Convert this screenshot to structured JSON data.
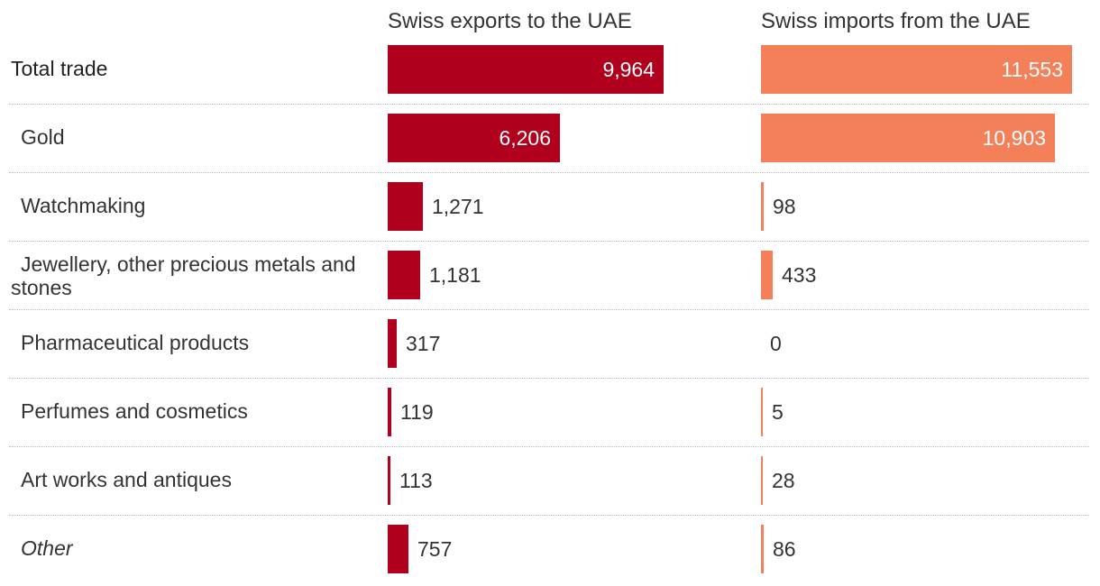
{
  "chart_data": {
    "type": "bar",
    "orientation": "horizontal",
    "layout": "two-panel",
    "series": [
      {
        "name": "Swiss exports to the UAE",
        "color": "#b0001e",
        "values": [
          9964,
          6206,
          1271,
          1181,
          317,
          119,
          113,
          757
        ],
        "labels": [
          "9,964",
          "6,206",
          "1,271",
          "1,181",
          "317",
          "119",
          "113",
          "757"
        ]
      },
      {
        "name": "Swiss imports from the UAE",
        "color": "#f4805a",
        "values": [
          11553,
          10903,
          98,
          433,
          0,
          5,
          28,
          86
        ],
        "labels": [
          "11,553",
          "10,903",
          "98",
          "433",
          "0",
          "5",
          "28",
          "86"
        ]
      }
    ],
    "categories": [
      {
        "label": "Total trade",
        "style": "total"
      },
      {
        "label": "Gold",
        "style": "normal"
      },
      {
        "label": "Watchmaking",
        "style": "normal"
      },
      {
        "label": "Jewellery, other precious metals and stones",
        "style": "normal"
      },
      {
        "label": "Pharmaceutical products",
        "style": "normal"
      },
      {
        "label": "Perfumes and cosmetics",
        "style": "normal"
      },
      {
        "label": "Art works and antiques",
        "style": "normal"
      },
      {
        "label": "Other",
        "style": "italic"
      }
    ],
    "xlim": [
      0,
      12500
    ],
    "grid": false,
    "legend": "column headers"
  }
}
